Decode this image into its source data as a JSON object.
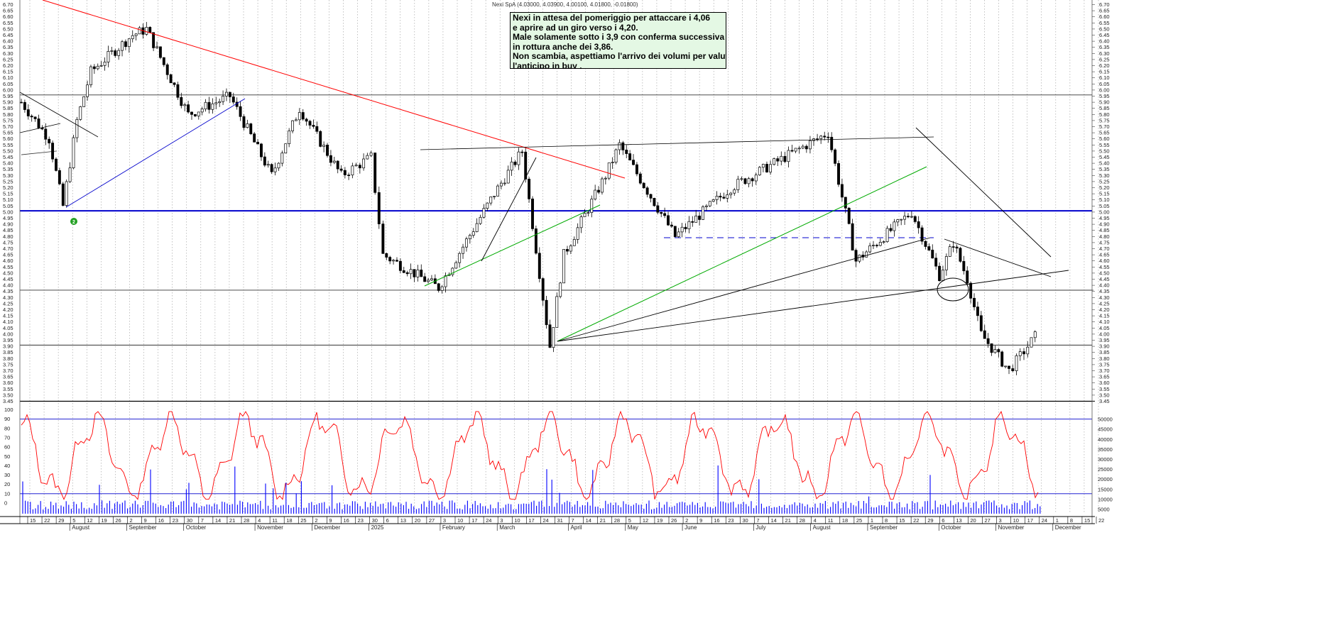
{
  "header": "Nexi SpA (4.03000, 4.03900, 4.00100, 4.01800, -0.01800)",
  "annotation_lines": [
    "Nexi in attesa del pomeriggio per attaccare i 4,06",
    "e aprire ad un giro verso i 4,20.",
    "Male solamente sotto i 3,9 con conferma successiva",
    "in rottura anche dei 3,86.",
    "Non scambia, aspettiamo l'arrivo dei volumi per valutare",
    "l'anticipo in buy ."
  ],
  "marker_label": "2",
  "colors": {
    "trend_red": "#ff0000",
    "support_blue": "#0000cc",
    "trend_green": "#00aa00",
    "oscillator": "#ff0000",
    "volume": "#0000ff",
    "grid": "#9a9a9a",
    "note_bg": "#e4f8e4"
  },
  "chart_data": [
    {
      "type": "candlestick",
      "price_axis": {
        "ylim": [
          3.45,
          6.7
        ],
        "ticks": [
          "6.70",
          "6.65",
          "6.60",
          "6.55",
          "6.50",
          "6.45",
          "6.40",
          "6.35",
          "6.30",
          "6.25",
          "6.20",
          "6.15",
          "6.10",
          "6.05",
          "6.00",
          "5.95",
          "5.90",
          "5.85",
          "5.80",
          "5.75",
          "5.70",
          "5.65",
          "5.60",
          "5.55",
          "5.50",
          "5.45",
          "5.40",
          "5.35",
          "5.30",
          "5.25",
          "5.20",
          "5.15",
          "5.10",
          "5.05",
          "5.00",
          "4.95",
          "4.90",
          "4.85",
          "4.80",
          "4.75",
          "4.70",
          "4.65",
          "4.60",
          "4.55",
          "4.50",
          "4.45",
          "4.40",
          "4.35",
          "4.30",
          "4.25",
          "4.20",
          "4.15",
          "4.10",
          "4.05",
          "4.00",
          "3.95",
          "3.90",
          "3.85",
          "3.80",
          "3.75",
          "3.70",
          "3.65",
          "3.60",
          "3.55",
          "3.50",
          "3.45"
        ]
      },
      "x_axis": {
        "day_ticks": [
          "15",
          "22",
          "29",
          "5",
          "12",
          "19",
          "26",
          "2",
          "9",
          "16",
          "23",
          "30",
          "7",
          "14",
          "21",
          "28",
          "4",
          "11",
          "18",
          "25",
          "2",
          "9",
          "16",
          "23",
          "30",
          "6",
          "13",
          "20",
          "27",
          "3",
          "10",
          "17",
          "24",
          "3",
          "10",
          "17",
          "24",
          "31",
          "7",
          "14",
          "21",
          "28",
          "5",
          "12",
          "19",
          "26",
          "2",
          "9",
          "16",
          "23",
          "30",
          "7",
          "14",
          "21",
          "28",
          "4",
          "11",
          "18",
          "25",
          "1",
          "8",
          "15",
          "22",
          "29",
          "6",
          "13",
          "20",
          "27",
          "3",
          "10",
          "17",
          "24",
          "1",
          "8",
          "15",
          "22"
        ],
        "months": [
          "August",
          "September",
          "October",
          "November",
          "December",
          "2025",
          "February",
          "March",
          "April",
          "May",
          "June",
          "July",
          "August",
          "September",
          "October",
          "November",
          "December"
        ]
      },
      "horizontal_levels": [
        5.96,
        5.01,
        4.36,
        3.91
      ],
      "key_points": [
        {
          "date": "2024-07-15",
          "close": 5.9
        },
        {
          "date": "2024-07-29",
          "close": 5.6
        },
        {
          "date": "2024-08-05",
          "close": 5.05
        },
        {
          "date": "2024-08-12",
          "close": 5.75
        },
        {
          "date": "2024-08-19",
          "close": 6.15
        },
        {
          "date": "2024-09-09",
          "close": 6.45
        },
        {
          "date": "2024-09-16",
          "close": 6.5
        },
        {
          "date": "2024-10-07",
          "close": 5.8
        },
        {
          "date": "2024-10-28",
          "close": 5.95
        },
        {
          "date": "2024-11-18",
          "close": 5.3
        },
        {
          "date": "2024-12-02",
          "close": 5.85
        },
        {
          "date": "2024-12-23",
          "close": 5.3
        },
        {
          "date": "2025-01-07",
          "close": 5.45
        },
        {
          "date": "2025-01-13",
          "close": 4.65
        },
        {
          "date": "2025-02-10",
          "close": 4.38
        },
        {
          "date": "2025-03-10",
          "close": 5.15
        },
        {
          "date": "2025-03-24",
          "close": 5.5
        },
        {
          "date": "2025-04-07",
          "close": 3.9
        },
        {
          "date": "2025-04-14",
          "close": 4.65
        },
        {
          "date": "2025-05-05",
          "close": 5.3
        },
        {
          "date": "2025-05-12",
          "close": 5.55
        },
        {
          "date": "2025-06-09",
          "close": 4.8
        },
        {
          "date": "2025-07-07",
          "close": 5.2
        },
        {
          "date": "2025-08-25",
          "close": 5.65
        },
        {
          "date": "2025-09-08",
          "close": 4.6
        },
        {
          "date": "2025-10-06",
          "close": 5.0
        },
        {
          "date": "2025-10-20",
          "close": 4.48
        },
        {
          "date": "2025-10-27",
          "close": 4.75
        },
        {
          "date": "2025-11-03",
          "close": 4.45
        },
        {
          "date": "2025-11-10",
          "close": 4.0
        },
        {
          "date": "2025-11-24",
          "close": 3.7
        },
        {
          "date": "2025-12-09",
          "close": 4.02
        }
      ]
    },
    {
      "type": "line",
      "name": "",
      "ylim": [
        0,
        100
      ],
      "ticks": [
        "100",
        "90",
        "80",
        "70",
        "60",
        "50",
        "40",
        "30",
        "20",
        "10",
        "0"
      ],
      "reference_levels": [
        90,
        10
      ]
    },
    {
      "type": "bar",
      "ylim": [
        0,
        50000
      ],
      "ticks": [
        "50000",
        "45000",
        "40000",
        "35000",
        "30000",
        "25000",
        "20000",
        "15000",
        "10000",
        "5000"
      ]
    }
  ]
}
